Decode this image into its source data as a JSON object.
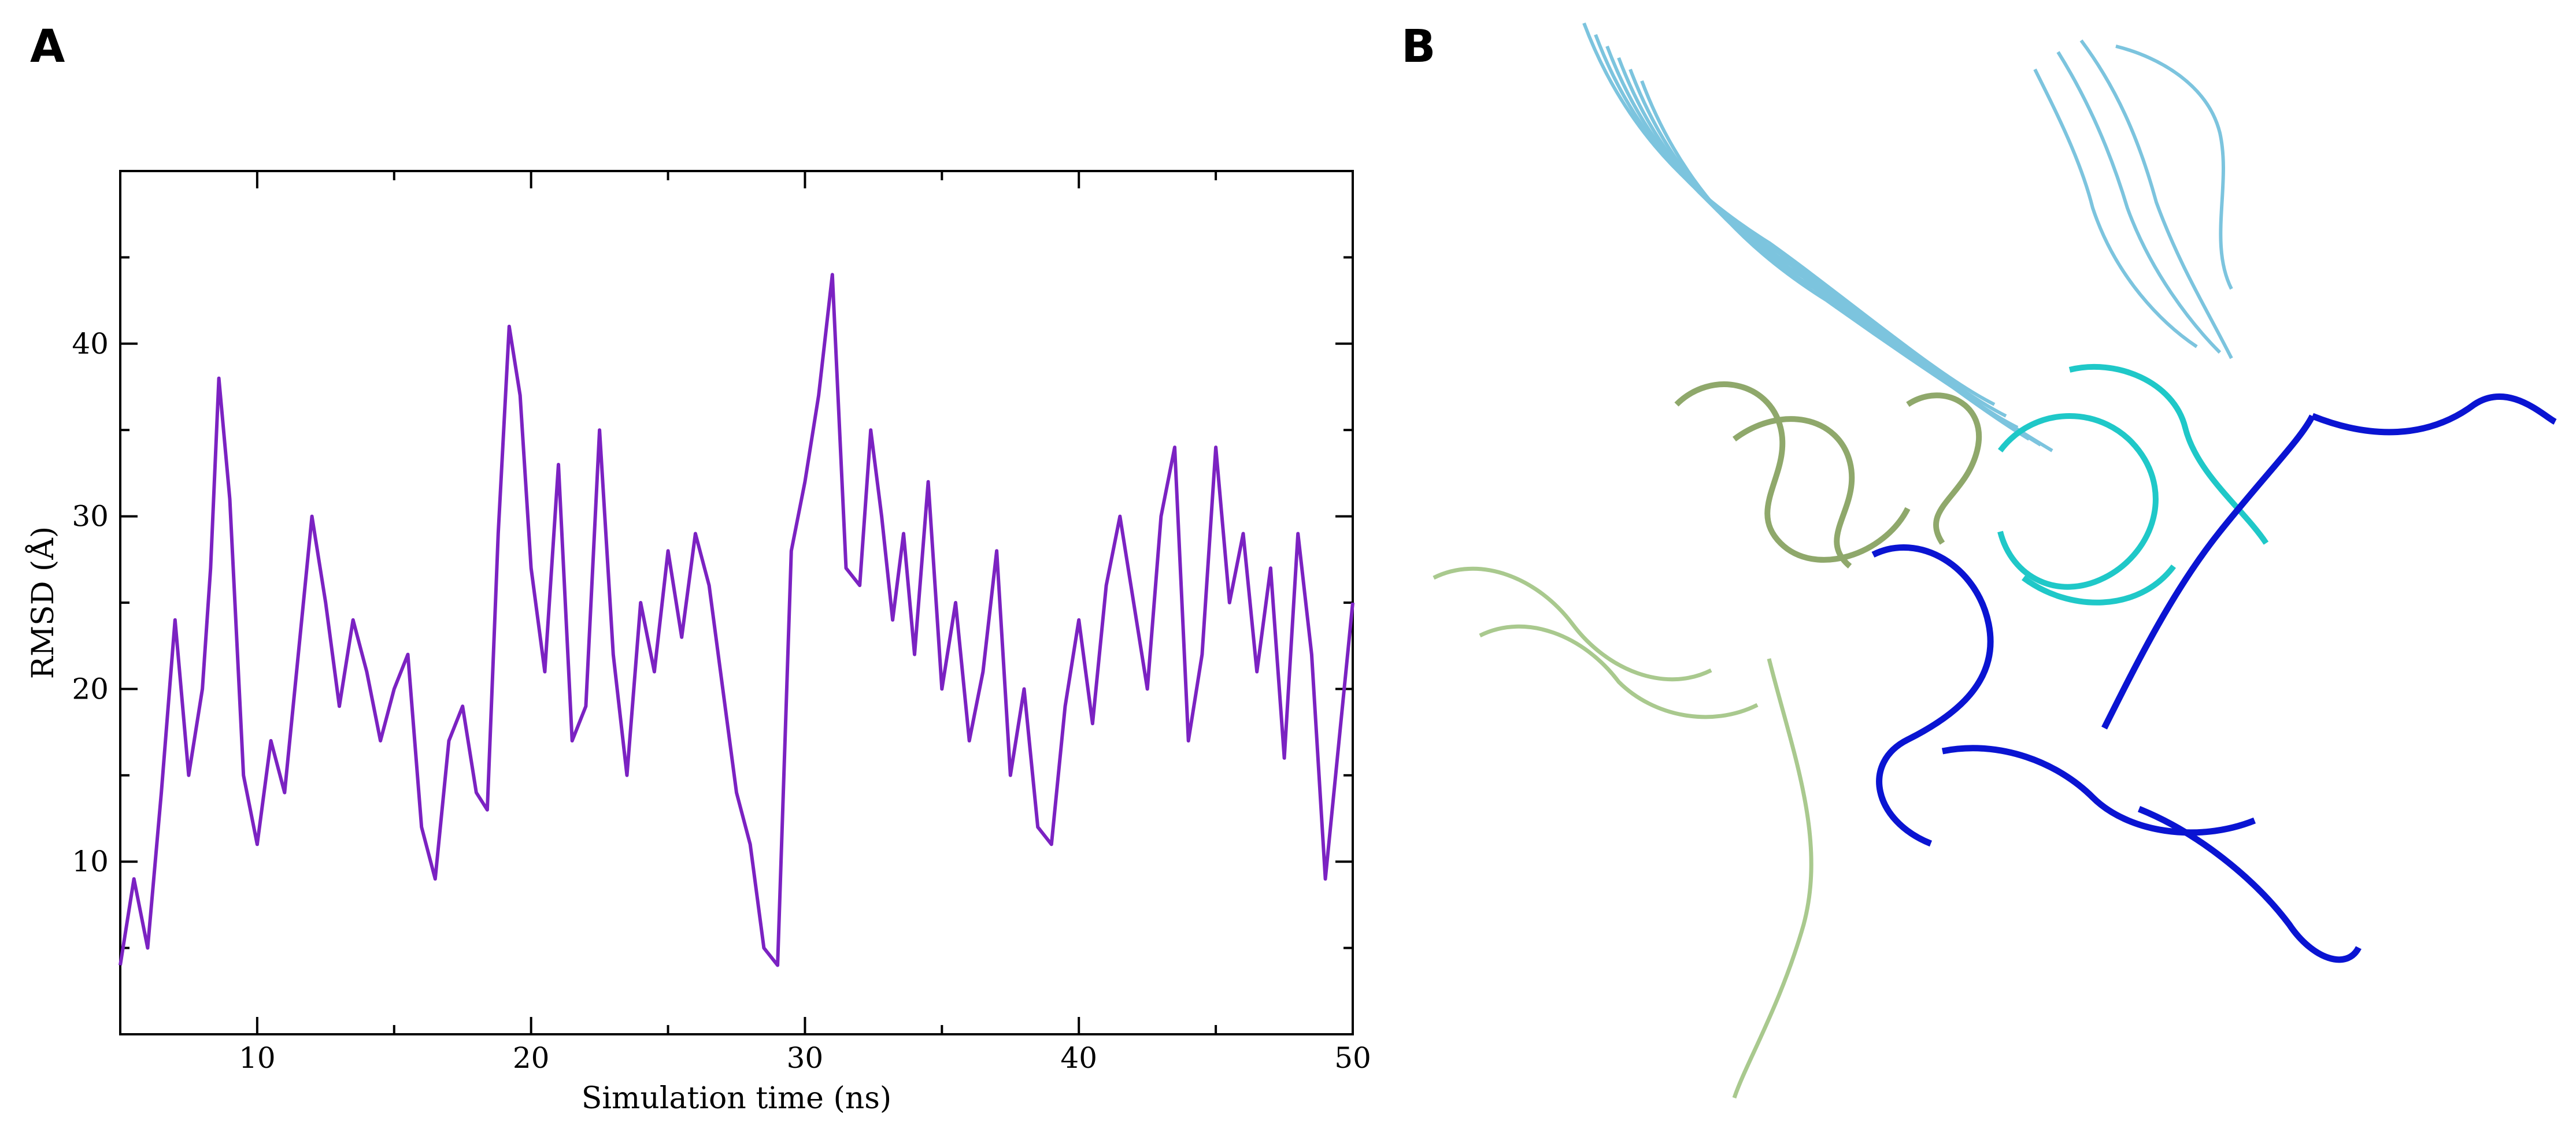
{
  "panels": {
    "a_label": "A",
    "b_label": "B"
  },
  "chart_data": {
    "type": "line",
    "title": "",
    "xlabel": "Simulation time (ns)",
    "ylabel": "RMSD (Å)",
    "xlim": [
      5,
      50
    ],
    "ylim": [
      0,
      50
    ],
    "xticks": [
      10,
      20,
      30,
      40,
      50
    ],
    "yticks": [
      10,
      20,
      30,
      40
    ],
    "grid": false,
    "series_color": "#7B22C2",
    "x": [
      5.0,
      5.5,
      6.0,
      6.5,
      7.0,
      7.5,
      8.0,
      8.3,
      8.6,
      9.0,
      9.5,
      10.0,
      10.5,
      11.0,
      11.5,
      12.0,
      12.5,
      13.0,
      13.5,
      14.0,
      14.5,
      15.0,
      15.5,
      16.0,
      16.5,
      17.0,
      17.5,
      18.0,
      18.4,
      18.8,
      19.2,
      19.6,
      20.0,
      20.5,
      21.0,
      21.5,
      22.0,
      22.5,
      23.0,
      23.5,
      24.0,
      24.5,
      25.0,
      25.5,
      26.0,
      26.5,
      27.0,
      27.5,
      28.0,
      28.5,
      29.0,
      29.5,
      30.0,
      30.5,
      31.0,
      31.5,
      32.0,
      32.4,
      32.8,
      33.2,
      33.6,
      34.0,
      34.5,
      35.0,
      35.5,
      36.0,
      36.5,
      37.0,
      37.5,
      38.0,
      38.5,
      39.0,
      39.5,
      40.0,
      40.5,
      41.0,
      41.5,
      42.0,
      42.5,
      43.0,
      43.5,
      44.0,
      44.5,
      45.0,
      45.5,
      46.0,
      46.5,
      47.0,
      47.5,
      48.0,
      48.5,
      49.0,
      49.5,
      50.0
    ],
    "values": [
      4,
      9,
      5,
      14,
      24,
      15,
      20,
      27,
      38,
      31,
      15,
      11,
      17,
      14,
      22,
      30,
      25,
      19,
      24,
      21,
      17,
      20,
      22,
      12,
      9,
      17,
      19,
      14,
      13,
      29,
      41,
      37,
      27,
      21,
      33,
      17,
      19,
      35,
      22,
      15,
      25,
      21,
      28,
      23,
      29,
      26,
      20,
      14,
      11,
      5,
      4,
      28,
      32,
      37,
      44,
      27,
      26,
      35,
      30,
      24,
      29,
      22,
      32,
      20,
      25,
      17,
      21,
      28,
      15,
      20,
      12,
      11,
      19,
      24,
      18,
      26,
      30,
      25,
      20,
      30,
      34,
      17,
      22,
      34,
      25,
      29,
      21,
      27,
      16,
      29,
      22,
      9,
      17,
      25
    ]
  }
}
